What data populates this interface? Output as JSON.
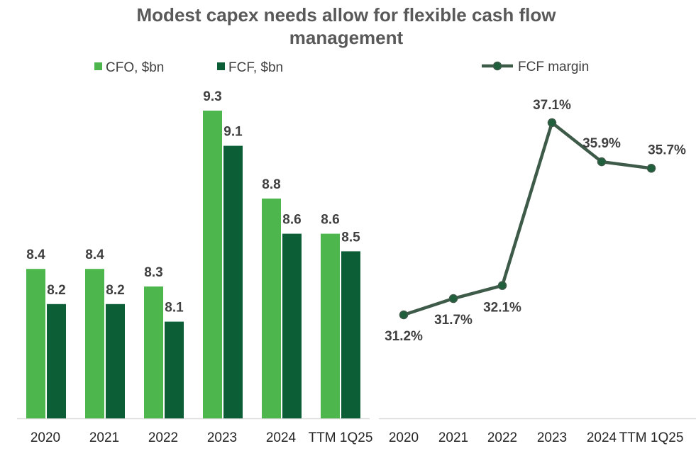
{
  "chart_data": {
    "title_lines": [
      "Modest capex needs allow for flexible cash flow",
      "management"
    ],
    "colors": {
      "cfo": "#4db74e",
      "fcf": "#0b5e36",
      "margin_line": "#3e5a49",
      "axis": "#d9d9d9",
      "title": "#595959"
    },
    "charts": [
      {
        "type": "bar",
        "categories": [
          "2020",
          "2021",
          "2022",
          "2023",
          "2024",
          "TTM 1Q25"
        ],
        "series": [
          {
            "name": "CFO, $bn",
            "values": [
              8.4,
              8.4,
              8.3,
              9.3,
              8.8,
              8.6
            ],
            "labels": [
              "8.4",
              "8.4",
              "8.3",
              "9.3",
              "8.8",
              "8.6"
            ]
          },
          {
            "name": "FCF, $bn",
            "values": [
              8.2,
              8.2,
              8.1,
              9.1,
              8.6,
              8.5
            ],
            "labels": [
              "8.2",
              "8.2",
              "8.1",
              "9.1",
              "8.6",
              "8.5"
            ]
          }
        ],
        "ylim": [
          0,
          10
        ],
        "legend_position": "top"
      },
      {
        "type": "line",
        "categories": [
          "2020",
          "2021",
          "2022",
          "2023",
          "2024",
          "TTM 1Q25"
        ],
        "series": [
          {
            "name": "FCF margin",
            "values": [
              31.2,
              31.7,
              32.1,
              37.1,
              35.9,
              35.7
            ],
            "labels": [
              "31.2%",
              "31.7%",
              "32.1%",
              "37.1%",
              "35.9%",
              "35.7%"
            ]
          }
        ],
        "ylim": [
          22,
          38.5
        ],
        "legend_position": "top"
      }
    ]
  }
}
